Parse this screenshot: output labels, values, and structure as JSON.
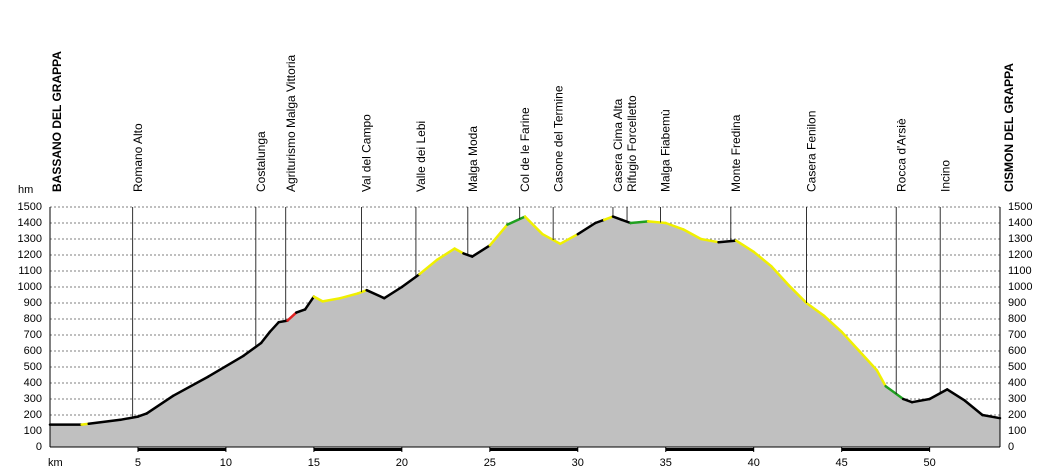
{
  "chart_data": {
    "type": "area",
    "y_label": "hm",
    "x_label": "km",
    "xlim": [
      0,
      54
    ],
    "ylim": [
      0,
      1500
    ],
    "xticks": [
      5,
      10,
      15,
      20,
      25,
      30,
      35,
      40,
      45,
      50
    ],
    "yticks": [
      0,
      100,
      200,
      300,
      400,
      500,
      600,
      700,
      800,
      900,
      1000,
      1100,
      1200,
      1300,
      1400,
      1500
    ],
    "grid": true,
    "fill": "#c0c0c0",
    "x": [
      0,
      1.8,
      2.2,
      4,
      5,
      5.5,
      7,
      9,
      11,
      12,
      12.5,
      13,
      13.5,
      14,
      14.5,
      15,
      15.5,
      16.5,
      17.5,
      18,
      19,
      20,
      21,
      22,
      23,
      23.5,
      24,
      25,
      26,
      27,
      28,
      29,
      30,
      31,
      31.5,
      32,
      32.5,
      33,
      34,
      35,
      36,
      37,
      38,
      39,
      40,
      41,
      42,
      43,
      44,
      45,
      46,
      47,
      47.5,
      48.5,
      49,
      50,
      51,
      52,
      53,
      54
    ],
    "y": [
      140,
      140,
      145,
      170,
      190,
      210,
      320,
      440,
      570,
      650,
      720,
      780,
      790,
      840,
      860,
      940,
      910,
      930,
      960,
      980,
      930,
      1000,
      1080,
      1170,
      1240,
      1210,
      1190,
      1260,
      1390,
      1440,
      1330,
      1270,
      1330,
      1400,
      1420,
      1440,
      1420,
      1400,
      1410,
      1400,
      1360,
      1300,
      1280,
      1290,
      1220,
      1130,
      1010,
      900,
      820,
      720,
      600,
      480,
      380,
      300,
      280,
      300,
      360,
      290,
      200,
      180
    ],
    "segment_colors": [
      "#000000",
      "#f0f000",
      "#000000",
      "#000000",
      "#000000",
      "#000000",
      "#000000",
      "#000000",
      "#000000",
      "#000000",
      "#000000",
      "#000000",
      "#e02020",
      "#000000",
      "#000000",
      "#f0f000",
      "#f0f000",
      "#f0f000",
      "#f0f000",
      "#000000",
      "#000000",
      "#000000",
      "#f0f000",
      "#f0f000",
      "#f0f000",
      "#000000",
      "#000000",
      "#f0f000",
      "#20a020",
      "#f0f000",
      "#f0f000",
      "#f0f000",
      "#000000",
      "#000000",
      "#f0f000",
      "#000000",
      "#000000",
      "#20a020",
      "#f0f000",
      "#f0f000",
      "#f0f000",
      "#f0f000",
      "#000000",
      "#f0f000",
      "#f0f000",
      "#f0f000",
      "#f0f000",
      "#f0f000",
      "#f0f000",
      "#f0f000",
      "#f0f000",
      "#f0f000",
      "#20a020",
      "#000000",
      "#000000",
      "#000000",
      "#000000",
      "#000000",
      "#000000",
      "#000000"
    ],
    "waypoints": [
      {
        "name": "BASSANO DEL GRAPPA",
        "km": 0
      },
      {
        "name": "Romano Alto",
        "km": 4.7
      },
      {
        "name": "Costalunga",
        "km": 11.7
      },
      {
        "name": "Agriturismo Malga Vittoria",
        "km": 13.4
      },
      {
        "name": "Val del Campo",
        "km": 17.7
      },
      {
        "name": "Valle dei Lebi",
        "km": 20.8
      },
      {
        "name": "Malga Moda",
        "km": 23.75
      },
      {
        "name": "Col de le Farine",
        "km": 26.7
      },
      {
        "name": "Casone del Termine",
        "km": 28.6
      },
      {
        "name": "Casera Cima Alta",
        "km": 32
      },
      {
        "name": "Rifugio Forcelletto",
        "km": 32.8
      },
      {
        "name": "Malga Fiabemù",
        "km": 34.7
      },
      {
        "name": "Monte Fredina",
        "km": 38.7
      },
      {
        "name": "Casera Fenilon",
        "km": 43
      },
      {
        "name": "Rocca d'Arsiè",
        "km": 48.1
      },
      {
        "name": "Incino",
        "km": 50.6
      },
      {
        "name": "CISMON DEL GRAPPA",
        "km": 54
      }
    ]
  }
}
